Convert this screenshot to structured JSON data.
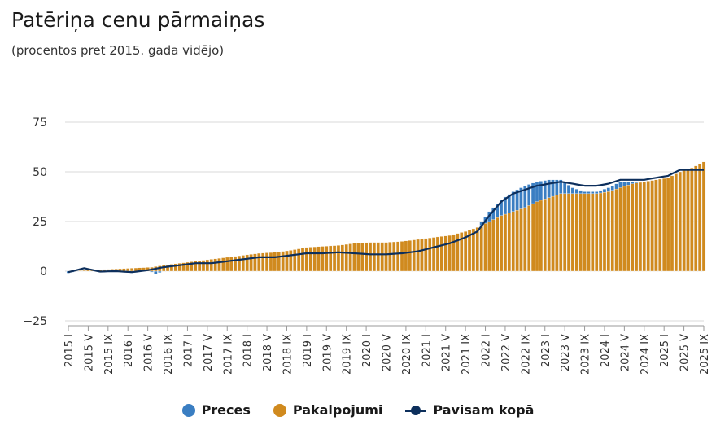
{
  "header": {
    "title": "Patēriņa cenu pārmaiņas",
    "subtitle": "(procentos pret 2015. gada vidējo)"
  },
  "chart_data": {
    "type": "bar",
    "ylim": [
      -25,
      75
    ],
    "yticks": [
      -25,
      0,
      25,
      50,
      75
    ],
    "x_tick_labels": [
      "2015 I",
      "2015 V",
      "2015 IX",
      "2016 I",
      "2016 V",
      "2016 IX",
      "2017 I",
      "2017 V",
      "2017 IX",
      "2018 I",
      "2018 V",
      "2018 IX",
      "2019 I",
      "2019 V",
      "2019 IX",
      "2020 I",
      "2020 V",
      "2020 IX",
      "2021 I",
      "2021 V",
      "2021 IX",
      "2022 I",
      "2022 V",
      "2022 IX",
      "2023 I",
      "2023 V",
      "2023 IX",
      "2024 I",
      "2024 V",
      "2024 IX",
      "2025 I",
      "2025 V",
      "2025 IX"
    ],
    "grid": true,
    "legend_position": "bottom",
    "colors": {
      "preces": "#3a7ec2",
      "pakalpojumi": "#d08a1e",
      "kopa": "#0d2f5c"
    },
    "series": [
      {
        "name": "Preces",
        "type": "bar",
        "anchors": [
          [
            0,
            -1
          ],
          [
            4,
            0.8
          ],
          [
            8,
            -0.5
          ],
          [
            12,
            -0.2
          ],
          [
            16,
            -1
          ],
          [
            20,
            0.5
          ],
          [
            22,
            -1.5
          ],
          [
            24,
            0
          ],
          [
            28,
            2
          ],
          [
            32,
            3
          ],
          [
            36,
            3.5
          ],
          [
            40,
            3.5
          ],
          [
            44,
            5
          ],
          [
            48,
            6
          ],
          [
            52,
            6
          ],
          [
            56,
            6.5
          ],
          [
            60,
            7
          ],
          [
            64,
            7.5
          ],
          [
            68,
            8
          ],
          [
            72,
            7.5
          ],
          [
            76,
            7
          ],
          [
            80,
            6.5
          ],
          [
            84,
            7
          ],
          [
            88,
            7.5
          ],
          [
            92,
            11
          ],
          [
            96,
            14
          ],
          [
            100,
            17
          ],
          [
            103,
            22
          ],
          [
            106,
            30
          ],
          [
            109,
            36
          ],
          [
            112,
            40
          ],
          [
            115,
            43
          ],
          [
            118,
            45
          ],
          [
            121,
            46
          ],
          [
            124,
            46
          ],
          [
            127,
            42
          ],
          [
            130,
            40
          ],
          [
            133,
            40
          ],
          [
            136,
            42
          ],
          [
            139,
            45
          ],
          [
            142,
            45
          ],
          [
            145,
            45
          ],
          [
            148,
            46
          ],
          [
            151,
            47
          ],
          [
            154,
            50
          ],
          [
            157,
            51
          ],
          [
            160,
            52
          ]
        ]
      },
      {
        "name": "Pakalpojumi",
        "type": "bar",
        "anchors": [
          [
            0,
            0
          ],
          [
            21,
            2
          ],
          [
            24,
            3
          ],
          [
            28,
            4
          ],
          [
            32,
            5
          ],
          [
            36,
            6
          ],
          [
            40,
            7
          ],
          [
            44,
            8
          ],
          [
            48,
            9
          ],
          [
            52,
            9.5
          ],
          [
            56,
            10.5
          ],
          [
            60,
            12
          ],
          [
            64,
            12.5
          ],
          [
            68,
            13
          ],
          [
            72,
            14
          ],
          [
            76,
            14.5
          ],
          [
            80,
            14.5
          ],
          [
            84,
            15
          ],
          [
            88,
            16
          ],
          [
            92,
            17
          ],
          [
            96,
            18
          ],
          [
            100,
            20
          ],
          [
            103,
            22
          ],
          [
            106,
            25
          ],
          [
            109,
            28
          ],
          [
            112,
            30
          ],
          [
            115,
            32
          ],
          [
            118,
            35
          ],
          [
            121,
            37
          ],
          [
            124,
            39
          ],
          [
            127,
            39
          ],
          [
            130,
            39
          ],
          [
            133,
            39
          ],
          [
            136,
            40
          ],
          [
            139,
            42
          ],
          [
            142,
            44
          ],
          [
            145,
            45
          ],
          [
            148,
            46
          ],
          [
            151,
            47
          ],
          [
            154,
            50
          ],
          [
            157,
            52
          ],
          [
            160,
            55
          ]
        ]
      },
      {
        "name": "Pavisam kopā",
        "type": "line",
        "anchors": [
          [
            0,
            -0.5
          ],
          [
            4,
            1.5
          ],
          [
            8,
            -0.2
          ],
          [
            12,
            0
          ],
          [
            16,
            -0.5
          ],
          [
            20,
            0.5
          ],
          [
            24,
            2
          ],
          [
            28,
            3
          ],
          [
            32,
            4
          ],
          [
            36,
            4
          ],
          [
            40,
            5
          ],
          [
            44,
            6
          ],
          [
            48,
            7
          ],
          [
            52,
            7
          ],
          [
            56,
            8
          ],
          [
            60,
            9
          ],
          [
            64,
            9
          ],
          [
            68,
            9.5
          ],
          [
            72,
            9
          ],
          [
            76,
            8.5
          ],
          [
            80,
            8.5
          ],
          [
            84,
            9
          ],
          [
            88,
            10
          ],
          [
            92,
            12
          ],
          [
            96,
            14
          ],
          [
            100,
            17
          ],
          [
            103,
            20
          ],
          [
            106,
            28
          ],
          [
            109,
            35
          ],
          [
            112,
            39
          ],
          [
            115,
            41
          ],
          [
            118,
            43
          ],
          [
            121,
            44
          ],
          [
            124,
            45
          ],
          [
            127,
            44
          ],
          [
            130,
            43
          ],
          [
            133,
            43
          ],
          [
            136,
            44
          ],
          [
            139,
            46
          ],
          [
            142,
            46
          ],
          [
            145,
            46
          ],
          [
            148,
            47
          ],
          [
            151,
            48
          ],
          [
            154,
            51
          ],
          [
            157,
            51
          ],
          [
            160,
            51
          ]
        ]
      }
    ]
  },
  "legend": {
    "preces": "Preces",
    "pakalpojumi": "Pakalpojumi",
    "kopa": "Pavisam kopā"
  }
}
